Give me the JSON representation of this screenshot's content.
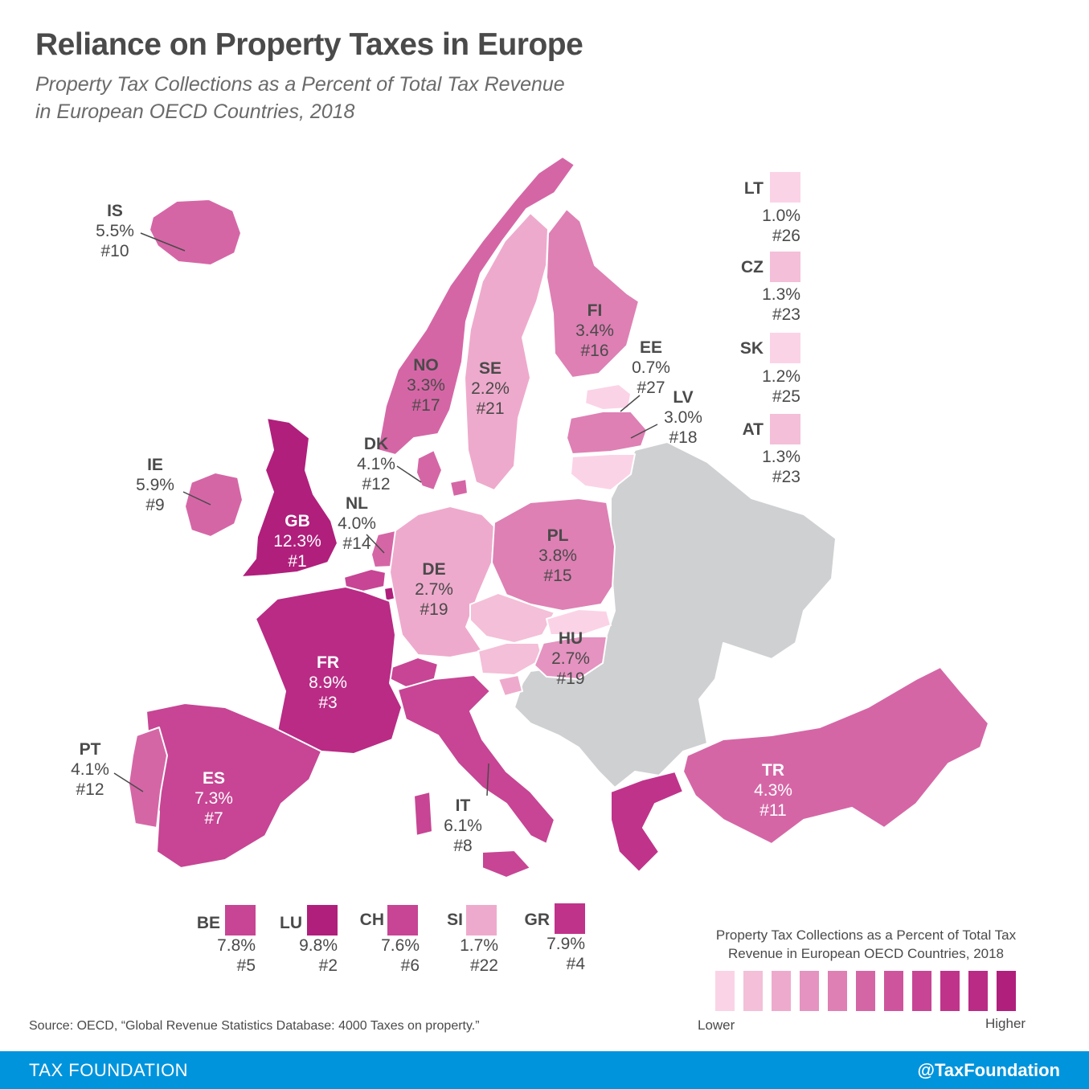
{
  "header": {
    "title": "Reliance on Property Taxes in Europe",
    "subtitle_line1": "Property Tax Collections as a Percent of Total Tax Revenue",
    "subtitle_line2": "in European OECD Countries, 2018"
  },
  "colors": {
    "scale": [
      "#fbd3e6",
      "#f4bfd8",
      "#eeaacc",
      "#e593c0",
      "#de80b4",
      "#d566a6",
      "#ce559d",
      "#c74594",
      "#c0338a",
      "#b92b85",
      "#b01f7c"
    ],
    "non_oecd": "#cfd0d2",
    "footer": "#0094dd"
  },
  "countries": [
    {
      "code": "IS",
      "value": "5.5%",
      "rank": "#10"
    },
    {
      "code": "IE",
      "value": "5.9%",
      "rank": "#9"
    },
    {
      "code": "GB",
      "value": "12.3%",
      "rank": "#1"
    },
    {
      "code": "NO",
      "value": "3.3%",
      "rank": "#17"
    },
    {
      "code": "SE",
      "value": "2.2%",
      "rank": "#21"
    },
    {
      "code": "FI",
      "value": "3.4%",
      "rank": "#16"
    },
    {
      "code": "EE",
      "value": "0.7%",
      "rank": "#27"
    },
    {
      "code": "LV",
      "value": "3.0%",
      "rank": "#18"
    },
    {
      "code": "DK",
      "value": "4.1%",
      "rank": "#12"
    },
    {
      "code": "NL",
      "value": "4.0%",
      "rank": "#14"
    },
    {
      "code": "PL",
      "value": "3.8%",
      "rank": "#15"
    },
    {
      "code": "DE",
      "value": "2.7%",
      "rank": "#19"
    },
    {
      "code": "HU",
      "value": "2.7%",
      "rank": "#19"
    },
    {
      "code": "FR",
      "value": "8.9%",
      "rank": "#3"
    },
    {
      "code": "PT",
      "value": "4.1%",
      "rank": "#12"
    },
    {
      "code": "ES",
      "value": "7.3%",
      "rank": "#7"
    },
    {
      "code": "IT",
      "value": "6.1%",
      "rank": "#8"
    },
    {
      "code": "TR",
      "value": "4.3%",
      "rank": "#11"
    }
  ],
  "side_legend": [
    {
      "code": "LT",
      "value": "1.0%",
      "rank": "#26"
    },
    {
      "code": "CZ",
      "value": "1.3%",
      "rank": "#23"
    },
    {
      "code": "SK",
      "value": "1.2%",
      "rank": "#25"
    },
    {
      "code": "AT",
      "value": "1.3%",
      "rank": "#23"
    }
  ],
  "bottom_legend": [
    {
      "code": "BE",
      "value": "7.8%",
      "rank": "#5"
    },
    {
      "code": "LU",
      "value": "9.8%",
      "rank": "#2"
    },
    {
      "code": "CH",
      "value": "7.6%",
      "rank": "#6"
    },
    {
      "code": "SI",
      "value": "1.7%",
      "rank": "#22"
    },
    {
      "code": "GR",
      "value": "7.9%",
      "rank": "#4"
    }
  ],
  "scale_legend": {
    "title_line1": "Property Tax Collections as a Percent of Total Tax",
    "title_line2": "Revenue in European OECD Countries, 2018",
    "lower": "Lower",
    "higher": "Higher"
  },
  "source": "Source: OECD, “Global Revenue Statistics Database: 4000 Taxes on property.”",
  "footer": {
    "brand": "TAX FOUNDATION",
    "handle": "@TaxFoundation"
  }
}
